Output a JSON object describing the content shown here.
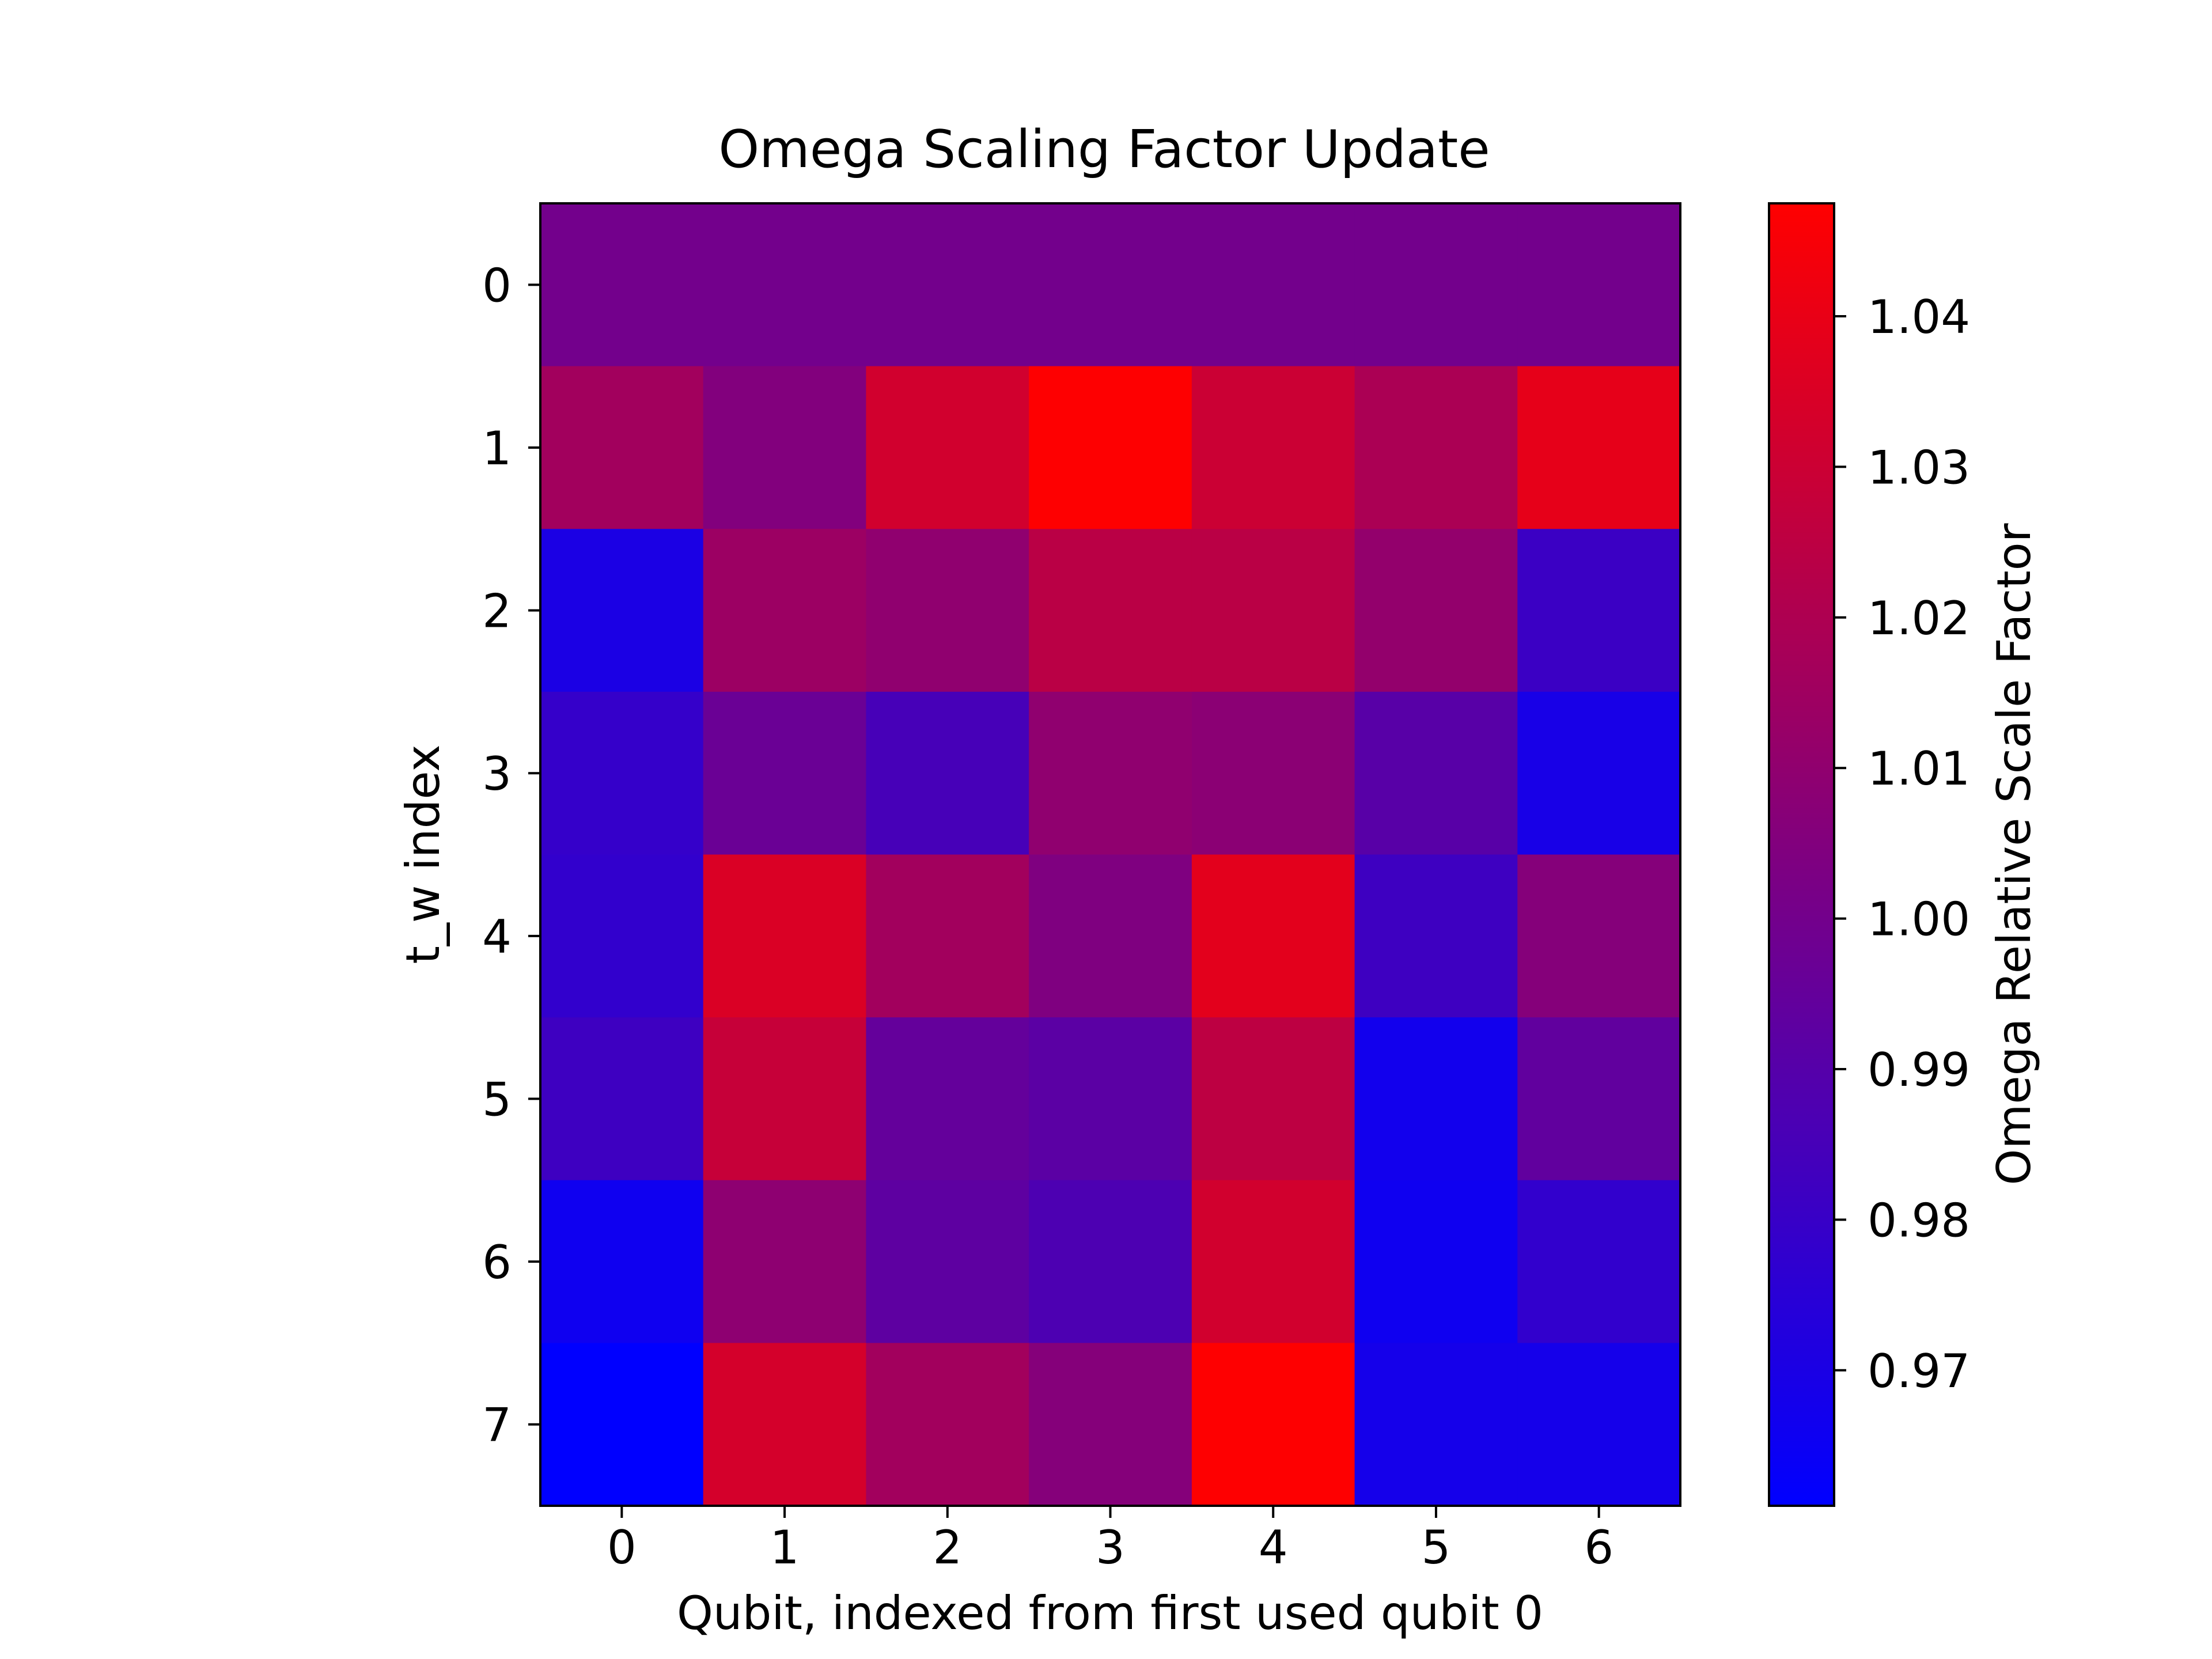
{
  "chart_data": {
    "type": "heatmap",
    "title": "Omega Scaling Factor Update",
    "xlabel": "Qubit, indexed from first used qubit 0",
    "ylabel": "t_w index",
    "x_categories": [
      "0",
      "1",
      "2",
      "3",
      "4",
      "5",
      "6"
    ],
    "y_categories": [
      "0",
      "1",
      "2",
      "3",
      "4",
      "5",
      "6",
      "7"
    ],
    "values": [
      [
        1.0,
        1.0,
        1.0,
        1.0,
        1.0,
        1.0,
        1.0
      ],
      [
        1.016,
        1.005,
        1.032,
        1.047,
        1.03,
        1.019,
        1.039
      ],
      [
        0.97,
        1.014,
        1.01,
        1.024,
        1.024,
        1.011,
        0.981
      ],
      [
        0.979,
        0.997,
        0.985,
        1.01,
        1.008,
        0.991,
        0.969
      ],
      [
        0.978,
        1.035,
        1.016,
        1.004,
        1.038,
        0.982,
        1.006
      ],
      [
        0.982,
        1.028,
        0.995,
        0.992,
        1.025,
        0.967,
        0.994
      ],
      [
        0.966,
        1.009,
        0.993,
        0.987,
        1.032,
        0.966,
        0.978
      ],
      [
        0.961,
        1.033,
        1.016,
        1.006,
        1.047,
        0.968,
        0.968
      ]
    ],
    "colorbar": {
      "label": "Omega Relative Scale Factor",
      "vmin": 0.961,
      "vmax": 1.0475,
      "ticks": [
        "0.97",
        "0.98",
        "0.99",
        "1.00",
        "1.01",
        "1.02",
        "1.03",
        "1.04"
      ],
      "colormap": [
        "#0000ff",
        "#ff0000"
      ]
    },
    "grid": false,
    "legend": "colorbar-right"
  }
}
